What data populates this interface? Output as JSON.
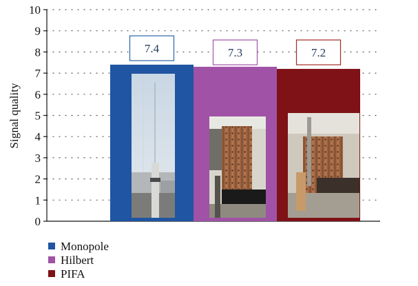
{
  "chart_data": {
    "type": "bar",
    "categories": [
      "Monopole",
      "Hilbert",
      "PIFA"
    ],
    "values": [
      7.4,
      7.3,
      7.2
    ],
    "data_labels": [
      "7.4",
      "7.3",
      "7.2"
    ],
    "colors": [
      "#1f55a2",
      "#a052a6",
      "#7e1216"
    ],
    "label_box_colors": [
      "#2a63a8",
      "#a052a6",
      "#a12a24"
    ],
    "xlabel": "",
    "ylabel": "Signal quality",
    "ylim": [
      0,
      10
    ],
    "yticks": [
      "0",
      "1",
      "2",
      "3",
      "4",
      "5",
      "6",
      "7",
      "8",
      "9",
      "10"
    ],
    "grid": true,
    "legend": {
      "position": "bottom-left",
      "entries": [
        "Monopole",
        "Hilbert",
        "PIFA"
      ]
    },
    "photos": [
      "monopole-antenna-photo",
      "hilbert-antenna-photo",
      "pifa-antenna-photo"
    ]
  }
}
